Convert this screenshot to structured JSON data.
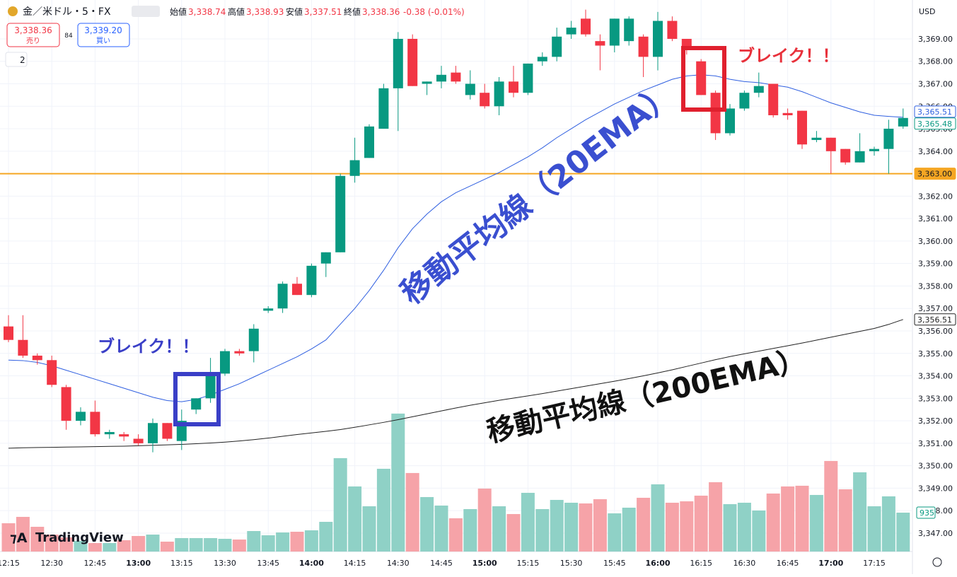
{
  "chart_data": {
    "type": "candlestick",
    "header": {
      "symbol": "金／米ドル・5・FX",
      "open_label": "始値",
      "open": "3,338.74",
      "high_label": "高値",
      "high": "3,338.93",
      "low_label": "安値",
      "low": "3,337.51",
      "close_label": "終値",
      "close": "3,338.36",
      "change": "-0.38 (-0.01%)",
      "sell_price": "3,338.36",
      "sell": "売り",
      "spread": "84",
      "buy_price": "3,339.20",
      "buy": "買い",
      "indicators": "2",
      "currency": "USD",
      "logo": "TradingView"
    },
    "up_color": "#089981",
    "down_color": "#f23645",
    "ylim": [
      3346.18,
      3370.73
    ],
    "yticks": [
      {
        "value": 3347,
        "label": "3,347.00"
      },
      {
        "value": 3348,
        "label": "3,348.00"
      },
      {
        "value": 3349,
        "label": "3,349.00"
      },
      {
        "value": 3350,
        "label": "3,350.00"
      },
      {
        "value": 3351,
        "label": "3,351.00"
      },
      {
        "value": 3352,
        "label": "3,352.00"
      },
      {
        "value": 3353,
        "label": "3,353.00"
      },
      {
        "value": 3354,
        "label": "3,354.00"
      },
      {
        "value": 3355,
        "label": "3,355.00"
      },
      {
        "value": 3356,
        "label": "3,356.00"
      },
      {
        "value": 3357,
        "label": "3,357.00"
      },
      {
        "value": 3358,
        "label": "3,358.00"
      },
      {
        "value": 3359,
        "label": "3,359.00"
      },
      {
        "value": 3360,
        "label": "3,360.00"
      },
      {
        "value": 3361,
        "label": "3,361.00"
      },
      {
        "value": 3362,
        "label": "3,362.00"
      },
      {
        "value": 3363,
        "label": "3,363.00"
      },
      {
        "value": 3364,
        "label": "3,364.00"
      },
      {
        "value": 3365,
        "label": "3,365.00"
      },
      {
        "value": 3366,
        "label": "3,366.00"
      },
      {
        "value": 3367,
        "label": "3,367.00"
      },
      {
        "value": 3368,
        "label": "3,368.00"
      },
      {
        "value": 3369,
        "label": "3,369.00"
      }
    ],
    "x": [
      "12:15",
      "12:20",
      "12:25",
      "12:30",
      "12:35",
      "12:40",
      "12:45",
      "12:50",
      "12:55",
      "13:00",
      "13:05",
      "13:10",
      "13:15",
      "13:20",
      "13:25",
      "13:30",
      "13:35",
      "13:40",
      "13:45",
      "13:50",
      "13:55",
      "14:00",
      "14:05",
      "14:10",
      "14:15",
      "14:20",
      "14:25",
      "14:30",
      "14:35",
      "14:40",
      "14:45",
      "14:50",
      "14:55",
      "15:00",
      "15:05",
      "15:10",
      "15:15",
      "15:20",
      "15:25",
      "15:30",
      "15:35",
      "15:40",
      "15:45",
      "15:50",
      "15:55",
      "16:00",
      "16:05",
      "16:10",
      "16:15",
      "16:20",
      "16:25",
      "16:30",
      "16:35",
      "16:40",
      "16:45",
      "16:50",
      "16:55",
      "17:00",
      "17:05",
      "17:10",
      "17:15",
      "17:20",
      "17:25"
    ],
    "xticks": [
      "12:15",
      "12:30",
      "12:45",
      "13:00",
      "13:15",
      "13:30",
      "13:45",
      "14:00",
      "14:15",
      "14:30",
      "14:45",
      "15:00",
      "15:15",
      "15:30",
      "15:45",
      "16:00",
      "16:15",
      "16:30",
      "16:45",
      "17:00",
      "17:15"
    ],
    "open": [
      3356.2,
      3355.6,
      3354.9,
      3354.7,
      3353.5,
      3352.0,
      3352.4,
      3351.4,
      3351.4,
      3351.2,
      3351.0,
      3351.9,
      3351.1,
      3352.5,
      3353.0,
      3354.1,
      3355.1,
      3355.1,
      3356.9,
      3357.0,
      3358.1,
      3357.6,
      3359.0,
      3359.5,
      3362.9,
      3363.7,
      3365.0,
      3366.8,
      3369.0,
      3367.0,
      3367.1,
      3367.5,
      3366.5,
      3366.6,
      3366.0,
      3367.1,
      3366.6,
      3368.0,
      3368.2,
      3369.2,
      3369.9,
      3368.9,
      3368.7,
      3368.9,
      3369.1,
      3368.2,
      3369.8,
      3369.0,
      3368.0,
      3366.6,
      3364.8,
      3365.9,
      3366.6,
      3367.0,
      3365.7,
      3365.8,
      3364.5,
      3364.6,
      3364.1,
      3363.5,
      3364.0,
      3364.1,
      3365.1
    ],
    "high": [
      3356.7,
      3356.7,
      3355.0,
      3354.9,
      3353.6,
      3352.6,
      3352.9,
      3351.6,
      3351.5,
      3351.4,
      3352.1,
      3351.9,
      3352.5,
      3353.0,
      3354.8,
      3355.2,
      3355.2,
      3356.3,
      3357.1,
      3358.2,
      3358.4,
      3359.0,
      3359.5,
      3363.0,
      3364.6,
      3365.2,
      3367.0,
      3369.3,
      3369.2,
      3367.1,
      3367.8,
      3367.8,
      3367.6,
      3367.0,
      3367.3,
      3367.8,
      3367.9,
      3368.4,
      3369.5,
      3369.8,
      3370.3,
      3369.2,
      3369.9,
      3370.0,
      3369.2,
      3370.2,
      3370.0,
      3369.0,
      3368.1,
      3366.7,
      3366.1,
      3366.7,
      3367.5,
      3367.0,
      3365.9,
      3365.8,
      3364.9,
      3364.6,
      3364.1,
      3364.8,
      3364.2,
      3365.4,
      3365.9
    ],
    "low": [
      3355.5,
      3354.8,
      3354.5,
      3353.5,
      3351.6,
      3351.8,
      3351.3,
      3351.2,
      3351.1,
      3350.9,
      3350.6,
      3351.1,
      3350.7,
      3352.3,
      3352.8,
      3354.0,
      3354.9,
      3354.6,
      3356.8,
      3356.8,
      3357.6,
      3357.5,
      3358.4,
      3359.5,
      3362.6,
      3363.7,
      3365.0,
      3364.9,
      3366.9,
      3366.5,
      3366.8,
      3367.0,
      3366.3,
      3365.9,
      3365.6,
      3366.4,
      3366.5,
      3367.8,
      3368.0,
      3369.0,
      3369.1,
      3367.6,
      3368.4,
      3368.7,
      3367.3,
      3367.6,
      3368.9,
      3368.3,
      3366.5,
      3364.5,
      3364.7,
      3365.8,
      3366.4,
      3365.5,
      3365.4,
      3364.1,
      3364.4,
      3363.0,
      3363.4,
      3363.5,
      3363.8,
      3363.0,
      3365.0
    ],
    "close": [
      3355.6,
      3354.9,
      3354.7,
      3353.6,
      3352.0,
      3352.4,
      3351.4,
      3351.5,
      3351.3,
      3351.0,
      3351.9,
      3351.2,
      3352.0,
      3353.0,
      3354.1,
      3355.1,
      3355.0,
      3356.1,
      3357.0,
      3358.1,
      3357.6,
      3358.9,
      3359.5,
      3362.9,
      3363.6,
      3365.1,
      3366.8,
      3369.0,
      3366.9,
      3367.1,
      3367.4,
      3367.1,
      3367.0,
      3366.0,
      3367.1,
      3366.6,
      3367.9,
      3368.2,
      3369.1,
      3369.5,
      3369.2,
      3368.7,
      3369.9,
      3369.9,
      3368.2,
      3369.8,
      3369.0,
      3368.5,
      3366.5,
      3364.8,
      3365.9,
      3366.6,
      3366.9,
      3365.6,
      3365.6,
      3364.3,
      3364.6,
      3364.0,
      3363.5,
      3364.0,
      3364.1,
      3365.0,
      3365.48
    ],
    "last_price_label": "3,365.48",
    "volume": {
      "vlim": [
        0,
        3500
      ],
      "values": [
        680,
        833,
        595,
        408,
        340,
        255,
        204,
        204,
        272,
        374,
        408,
        238,
        323,
        323,
        323,
        306,
        289,
        493,
        391,
        459,
        476,
        510,
        714,
        2244,
        1564,
        1088,
        1989,
        3315,
        1887,
        1309,
        1105,
        799,
        1020,
        1513,
        1088,
        901,
        1411,
        1020,
        1241,
        1173,
        1156,
        1258,
        918,
        1054,
        1292,
        1615,
        1173,
        1207,
        1343,
        1666,
        1139,
        1173,
        986,
        1394,
        1564,
        1581,
        1360,
        2176,
        1496,
        1904,
        1088,
        1326,
        935
      ],
      "up_color": "#8fd1c6",
      "down_color": "#f6a3a8"
    },
    "lines": [
      {
        "color": "#2f5fe0",
        "last_label": "3,365.51",
        "values": [
          3354.7,
          3354.68,
          3354.6,
          3354.45,
          3354.25,
          3354.05,
          3353.85,
          3353.65,
          3353.45,
          3353.25,
          3353.05,
          3352.9,
          3352.85,
          3352.95,
          3353.15,
          3353.4,
          3353.65,
          3353.95,
          3354.25,
          3354.55,
          3354.85,
          3355.2,
          3355.6,
          3356.3,
          3357.0,
          3357.8,
          3358.7,
          3359.7,
          3360.55,
          3361.2,
          3361.75,
          3362.15,
          3362.45,
          3362.75,
          3363.05,
          3363.4,
          3363.75,
          3364.15,
          3364.6,
          3365.0,
          3365.4,
          3365.75,
          3366.1,
          3366.4,
          3366.7,
          3366.95,
          3367.2,
          3367.35,
          3367.4,
          3367.35,
          3367.2,
          3367.1,
          3367.05,
          3366.95,
          3366.85,
          3366.65,
          3366.4,
          3366.15,
          3365.95,
          3365.75,
          3365.6,
          3365.55,
          3365.51
        ]
      },
      {
        "color": "#222222",
        "last_label": "3,356.51",
        "values": [
          3350.78,
          3350.8,
          3350.81,
          3350.82,
          3350.83,
          3350.84,
          3350.85,
          3350.86,
          3350.87,
          3350.89,
          3350.91,
          3350.93,
          3350.95,
          3350.98,
          3351.01,
          3351.05,
          3351.1,
          3351.16,
          3351.23,
          3351.31,
          3351.39,
          3351.46,
          3351.53,
          3351.61,
          3351.71,
          3351.82,
          3351.93,
          3352.05,
          3352.18,
          3352.31,
          3352.44,
          3352.57,
          3352.69,
          3352.8,
          3352.91,
          3353.01,
          3353.11,
          3353.21,
          3353.32,
          3353.43,
          3353.54,
          3353.65,
          3353.76,
          3353.88,
          3354.0,
          3354.13,
          3354.27,
          3354.42,
          3354.57,
          3354.72,
          3354.86,
          3354.98,
          3355.1,
          3355.22,
          3355.34,
          3355.46,
          3355.59,
          3355.72,
          3355.85,
          3355.98,
          3356.11,
          3356.29,
          3356.51
        ]
      }
    ],
    "hline": {
      "value": 3363,
      "label": "3,363.00",
      "color": "#f5a623"
    },
    "annotations": [
      {
        "text": "ブレイク！！",
        "color": "#3a3fc7"
      },
      {
        "text": "移動平均線（20EMA）",
        "color": "#3a4fd0"
      },
      {
        "text": "ブレイク！！",
        "color": "#e8303a"
      },
      {
        "text": "移動平均線（200EMA）",
        "color": "#111111"
      }
    ]
  }
}
